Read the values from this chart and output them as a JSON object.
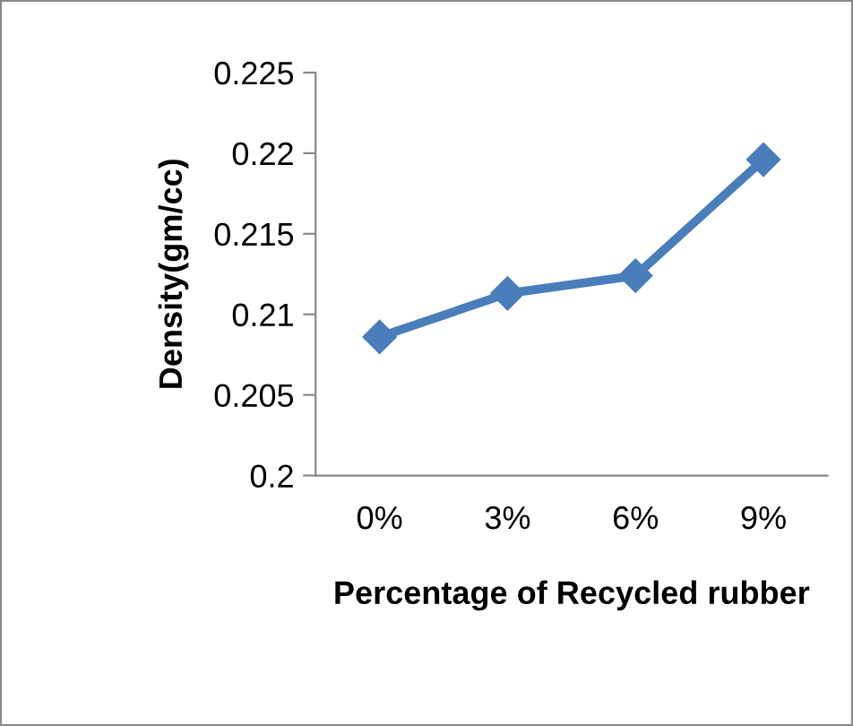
{
  "chart_data": {
    "type": "line",
    "xlabel": "Percentage of Recycled rubber",
    "ylabel": "Density(gm/cc)",
    "categories": [
      "0%",
      "3%",
      "6%",
      "9%"
    ],
    "series": [
      {
        "color": "#4a7ebb",
        "values": [
          0.2086,
          0.2113,
          0.2124,
          0.2196
        ]
      }
    ],
    "ylim": [
      0.2,
      0.225
    ],
    "yticks": [
      0.2,
      0.205,
      0.21,
      0.215,
      0.22,
      0.225
    ],
    "grid": false,
    "legend": false,
    "marker": "diamond",
    "line_style": "solid"
  }
}
